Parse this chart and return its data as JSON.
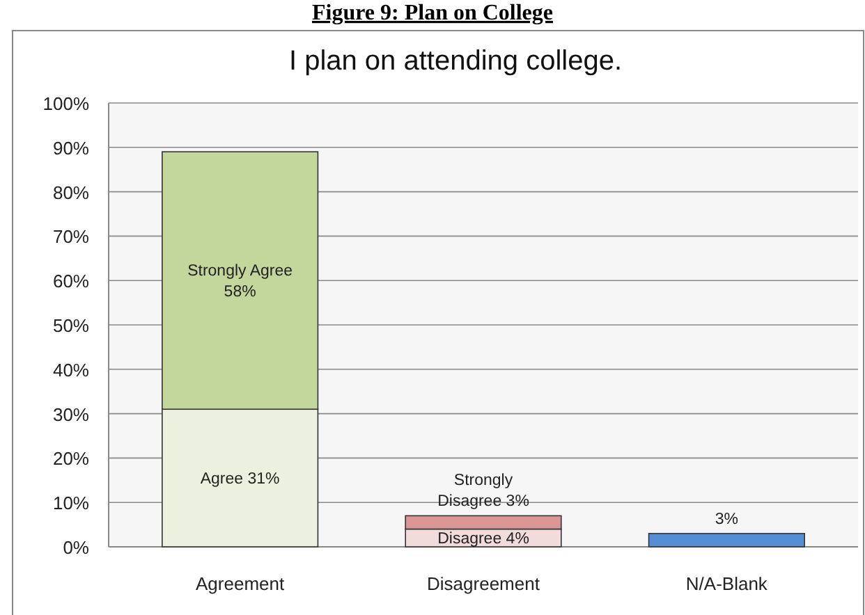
{
  "chart_data": {
    "type": "bar",
    "stacked": true,
    "title": "I plan on attending college.",
    "annotations": [
      "Figure 9: Plan on College"
    ],
    "categories": [
      "Agreement",
      "Disagreement",
      "N/A-Blank"
    ],
    "series": [
      {
        "color": "#ebf1de",
        "values": [
          31,
          null,
          null
        ],
        "value_labels": [
          "Agree 31%",
          null,
          null
        ]
      },
      {
        "color": "#c3d69b",
        "values": [
          58,
          null,
          null
        ],
        "value_labels": [
          "Strongly Agree\n58%",
          null,
          null
        ]
      },
      {
        "color": "#f2dcdb",
        "values": [
          null,
          4,
          null
        ],
        "value_labels": [
          null,
          "Disagree 4%",
          null
        ]
      },
      {
        "color": "#d99694",
        "values": [
          null,
          3,
          null
        ],
        "value_labels": [
          null,
          "Strongly\nDisagree 3%",
          null
        ]
      },
      {
        "color": "#558ed5",
        "values": [
          null,
          null,
          3
        ],
        "value_labels": [
          null,
          null,
          "3%"
        ]
      }
    ],
    "ylim": [
      0,
      100
    ],
    "yticks": [
      {
        "value": 0,
        "label": "0%"
      },
      {
        "value": 10,
        "label": "10%"
      },
      {
        "value": 20,
        "label": "20%"
      },
      {
        "value": 30,
        "label": "30%"
      },
      {
        "value": 40,
        "label": "40%"
      },
      {
        "value": 50,
        "label": "50%"
      },
      {
        "value": 60,
        "label": "60%"
      },
      {
        "value": 70,
        "label": "70%"
      },
      {
        "value": 80,
        "label": "80%"
      },
      {
        "value": 90,
        "label": "90%"
      },
      {
        "value": 100,
        "label": "100%"
      }
    ],
    "grid": "y"
  }
}
